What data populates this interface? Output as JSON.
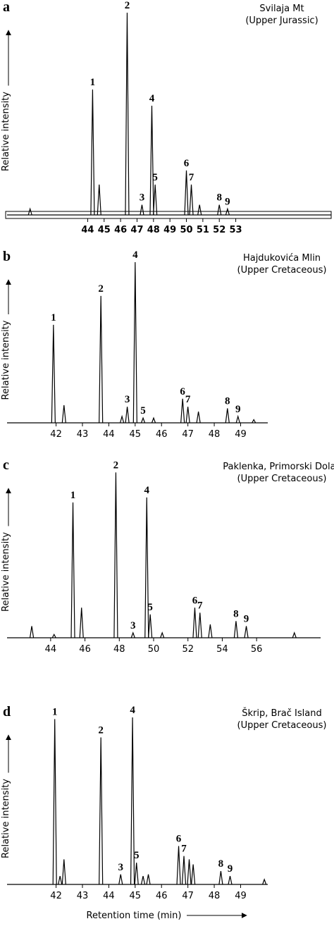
{
  "chart_data": [
    {
      "type": "line",
      "panel": "a",
      "title": [
        "Svilaja Mt",
        "(Upper Jurassic)"
      ],
      "y_label": "Relative intensity",
      "x": [
        40.5,
        44.3,
        44.7,
        46.4,
        47.3,
        47.9,
        48.1,
        50.0,
        50.3,
        50.8,
        52.0,
        52.5
      ],
      "values": [
        3,
        62,
        15,
        100,
        5,
        54,
        15,
        22,
        15,
        5,
        5,
        3
      ],
      "peak_labels": [
        null,
        "1",
        null,
        "2",
        "3",
        "4",
        "5",
        "6",
        "7",
        null,
        "8",
        "9"
      ],
      "xlim": [
        39.1,
        58.8
      ],
      "ylim": [
        0,
        100
      ],
      "xticks": [
        44,
        45,
        46,
        47,
        48,
        49,
        50,
        51,
        52,
        53
      ],
      "color": "#000000"
    },
    {
      "type": "line",
      "panel": "b",
      "title": [
        "Hajdukovića Mlin",
        "(Upper Cretaceous)"
      ],
      "y_label": "Relative intensity",
      "x": [
        41.9,
        42.3,
        43.7,
        44.5,
        44.7,
        45.0,
        45.3,
        45.7,
        46.8,
        47.0,
        47.4,
        48.5,
        48.9,
        49.5
      ],
      "values": [
        61,
        11,
        79,
        4,
        10,
        100,
        3,
        3,
        15,
        10,
        7,
        9,
        4,
        2
      ],
      "peak_labels": [
        "1",
        null,
        "2",
        null,
        "3",
        "4",
        "5",
        null,
        "6",
        "7",
        null,
        "8",
        "9",
        null
      ],
      "xlim": [
        40.14,
        50.03
      ],
      "ylim": [
        0,
        100
      ],
      "xticks": [
        42,
        43,
        44,
        45,
        46,
        47,
        48,
        49
      ],
      "color": "#000000"
    },
    {
      "type": "line",
      "panel": "c",
      "title": [
        "Paklenka, Primorski Dolac",
        "(Upper Cretaceous)"
      ],
      "y_label": "Relative intensity",
      "x": [
        42.9,
        44.2,
        45.3,
        45.8,
        47.8,
        48.8,
        49.6,
        49.8,
        50.5,
        52.4,
        52.7,
        53.3,
        54.8,
        55.4,
        58.2
      ],
      "values": [
        7,
        2,
        81,
        18,
        99,
        3,
        84,
        14,
        3,
        18,
        15,
        8,
        10,
        7,
        3
      ],
      "peak_labels": [
        null,
        null,
        "1",
        null,
        "2",
        "3",
        "4",
        "5",
        null,
        "6",
        "7",
        null,
        "8",
        "9",
        null
      ],
      "xlim": [
        41.46,
        59.73
      ],
      "ylim": [
        0,
        100
      ],
      "xticks": [
        44,
        46,
        48,
        50,
        52,
        54,
        56
      ],
      "color": "#000000"
    },
    {
      "type": "line",
      "panel": "d",
      "title": [
        "Škrip, Brač Island",
        "(Upper Cretaceous)"
      ],
      "y_label": "Relative intensity",
      "x_label": "Retention time (min)",
      "x": [
        41.95,
        42.15,
        42.3,
        43.7,
        44.45,
        44.9,
        45.05,
        45.3,
        45.5,
        46.65,
        46.85,
        47.05,
        47.2,
        48.25,
        48.6,
        49.9
      ],
      "values": [
        99,
        5,
        15,
        88,
        6,
        100,
        13,
        5,
        6,
        23,
        17,
        15,
        12,
        8,
        5,
        3
      ],
      "peak_labels": [
        "1",
        null,
        null,
        "2",
        "3",
        "4",
        "5",
        null,
        null,
        "6",
        "7",
        null,
        null,
        "8",
        "9",
        null
      ],
      "xlim": [
        40.14,
        50.03
      ],
      "ylim": [
        0,
        100
      ],
      "xticks": [
        42,
        43,
        44,
        45,
        46,
        47,
        48,
        49
      ],
      "color": "#000000"
    }
  ]
}
